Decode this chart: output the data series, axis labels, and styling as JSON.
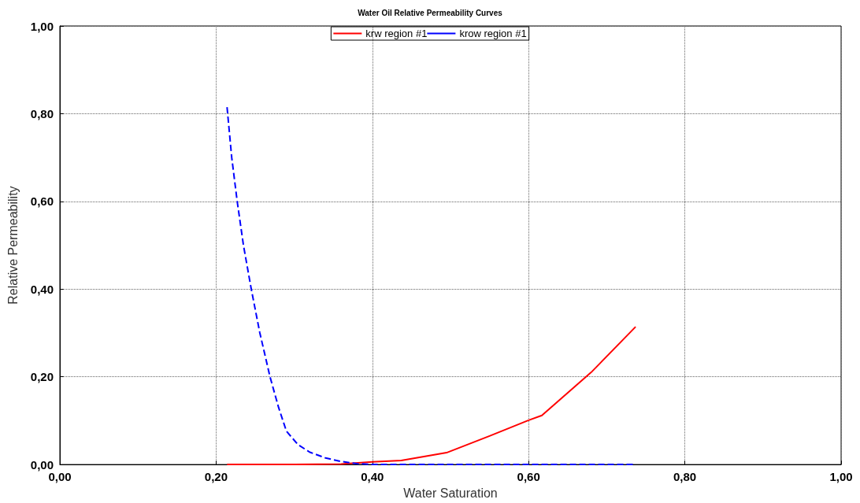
{
  "chart_data": {
    "type": "line",
    "title": "Water Oil Relative Permeability Curves",
    "xlabel": "Water Saturation",
    "ylabel": "Relative Permeability",
    "series": [
      {
        "name": "krw region #1",
        "color": "#ff0000",
        "line_style": "solid",
        "x": [
          0.214,
          0.3,
          0.36,
          0.4,
          0.437,
          0.495,
          0.55,
          0.6,
          0.617,
          0.68,
          0.737
        ],
        "values": [
          0,
          0,
          0.001,
          0.006,
          0.009,
          0.027,
          0.065,
          0.101,
          0.112,
          0.21,
          0.314
        ]
      },
      {
        "name": "krow region #1",
        "color": "#0000ff",
        "line_style": "dashed",
        "x": [
          0.214,
          0.22,
          0.227,
          0.235,
          0.245,
          0.256,
          0.269,
          0.28,
          0.29,
          0.305,
          0.32,
          0.34,
          0.36,
          0.38,
          0.4,
          0.5,
          0.6,
          0.737
        ],
        "values": [
          0.815,
          0.7,
          0.6,
          0.5,
          0.4,
          0.3,
          0.2,
          0.13,
          0.076,
          0.045,
          0.028,
          0.015,
          0.007,
          0.002,
          0,
          0,
          0,
          0
        ]
      }
    ],
    "xlim": [
      0,
      1
    ],
    "xticks": [
      {
        "value": 0,
        "label": "0,00"
      },
      {
        "value": 0.2,
        "label": "0,20"
      },
      {
        "value": 0.4,
        "label": "0,40"
      },
      {
        "value": 0.6,
        "label": "0,60"
      },
      {
        "value": 0.8,
        "label": "0,80"
      },
      {
        "value": 1,
        "label": "1,00"
      }
    ],
    "ylim": [
      0,
      1
    ],
    "yticks": [
      {
        "value": 0,
        "label": "0,00"
      },
      {
        "value": 0.2,
        "label": "0,20"
      },
      {
        "value": 0.4,
        "label": "0,40"
      },
      {
        "value": 0.6,
        "label": "0,60"
      },
      {
        "value": 0.8,
        "label": "0,80"
      },
      {
        "value": 1,
        "label": "1,00"
      }
    ],
    "grid": true,
    "legend": "top",
    "marker": "none"
  }
}
